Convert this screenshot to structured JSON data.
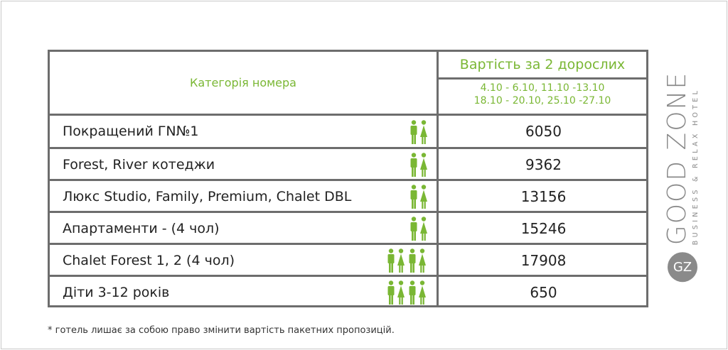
{
  "table": {
    "header": {
      "category": "Категорія номера",
      "price_title": "Вартість за  2 дорослих",
      "dates": [
        "4.10 - 6.10, 11.10 -13.10",
        "18.10 - 20.10, 25.10 -27.10"
      ]
    },
    "rows": [
      [
        "Покращений ГN№1",
        "6050"
      ],
      [
        "Forest, River котеджи",
        "9362"
      ],
      [
        "Люкс Studio, Family, Premium, Chalet DBL",
        "13156"
      ],
      [
        "Апартаменти - (4 чол)",
        "15246"
      ],
      [
        "Chalet Forest 1, 2  (4 чол)",
        "17908"
      ],
      [
        "Діти  3-12 років",
        "650"
      ]
    ]
  },
  "logo": {
    "name": "GOOD ZONE",
    "tagline": "BUSINESS & RELAX HOTEL"
  },
  "footnote": "* готель лишає за собою право змінити вартість пакетних пропозицій."
}
